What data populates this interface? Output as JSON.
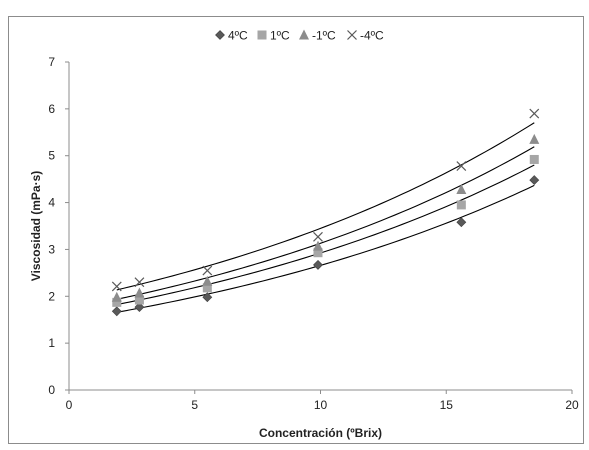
{
  "chart_data": {
    "type": "scatter",
    "xlabel": "Concentración (ºBrix)",
    "ylabel": "Viscosidad (mPa·s)",
    "xlim": [
      0,
      20
    ],
    "ylim": [
      0,
      7
    ],
    "xticks": [
      "0",
      "5",
      "10",
      "15",
      "20"
    ],
    "yticks": [
      "0",
      "1",
      "2",
      "3",
      "4",
      "5",
      "6",
      "7"
    ],
    "grid": false,
    "legend_position": "top",
    "trendline": "exponential",
    "x": [
      1.9,
      2.8,
      5.5,
      9.9,
      15.6,
      18.5
    ],
    "series": [
      {
        "name": "4ºC",
        "marker": "diamond",
        "color": "#595959",
        "values": [
          1.68,
          1.77,
          1.98,
          2.67,
          3.58,
          4.48
        ]
      },
      {
        "name": "1ºC",
        "marker": "square",
        "color": "#a6a6a6",
        "values": [
          1.87,
          1.92,
          2.18,
          2.93,
          3.95,
          4.92
        ]
      },
      {
        "name": "-1ºC",
        "marker": "triangle",
        "color": "#8c8c8c",
        "values": [
          1.98,
          2.07,
          2.32,
          3.07,
          4.28,
          5.35
        ]
      },
      {
        "name": "-4ºC",
        "marker": "x",
        "color": "#595959",
        "values": [
          2.21,
          2.3,
          2.55,
          3.27,
          4.78,
          5.9
        ]
      }
    ]
  }
}
